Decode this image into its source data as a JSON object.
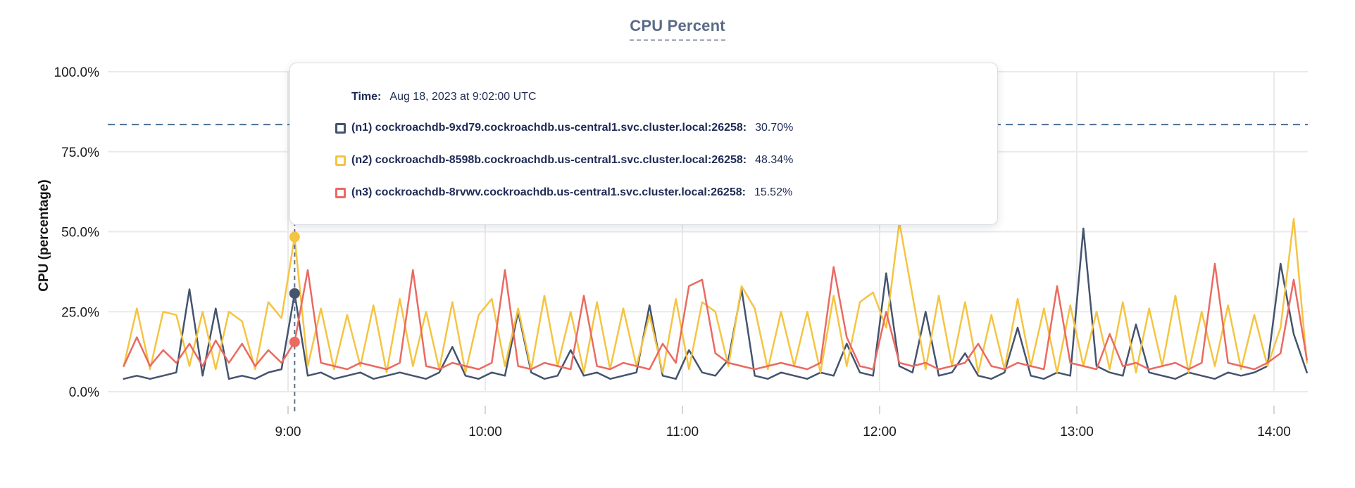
{
  "title": "CPU Percent",
  "y_axis": {
    "title": "CPU (percentage)",
    "tick_labels": [
      "0.0%",
      "25.0%",
      "50.0%",
      "75.0%",
      "100.0%"
    ]
  },
  "x_axis": {
    "tick_labels": [
      "9:00",
      "10:00",
      "11:00",
      "12:00",
      "13:00",
      "14:00"
    ]
  },
  "tooltip": {
    "time_label": "Time:",
    "time_value": "Aug 18, 2023 at 9:02:00 UTC",
    "series": [
      {
        "label": "(n1) cockroachdb-9xd79.cockroachdb.us-central1.svc.cluster.local:26258:",
        "value": "30.70%"
      },
      {
        "label": "(n2) cockroachdb-8598b.cockroachdb.us-central1.svc.cluster.local:26258:",
        "value": "48.34%"
      },
      {
        "label": "(n3) cockroachdb-8rvwv.cockroachdb.us-central1.svc.cluster.local:26258:",
        "value": "15.52%"
      }
    ]
  },
  "chart_data": {
    "type": "line",
    "title": "CPU Percent",
    "ylabel": "CPU (percentage)",
    "ylim": [
      0,
      100
    ],
    "y_ticks_percent": [
      0,
      25,
      50,
      75,
      100
    ],
    "grid": true,
    "threshold_dashed_line_percent": 83.5,
    "hover_marker": {
      "time": "9:02",
      "values_percent": {
        "n1": 30.7,
        "n2": 48.34,
        "n3": 15.52
      }
    },
    "x_hour_ticks": [
      "9:00",
      "10:00",
      "11:00",
      "12:00",
      "13:00",
      "14:00"
    ],
    "x_times": [
      "8:10",
      "8:14",
      "8:18",
      "8:22",
      "8:26",
      "8:30",
      "8:34",
      "8:38",
      "8:42",
      "8:46",
      "8:50",
      "8:54",
      "8:58",
      "9:02",
      "9:06",
      "9:10",
      "9:14",
      "9:18",
      "9:22",
      "9:26",
      "9:30",
      "9:34",
      "9:38",
      "9:42",
      "9:46",
      "9:50",
      "9:54",
      "9:58",
      "10:02",
      "10:06",
      "10:10",
      "10:14",
      "10:18",
      "10:22",
      "10:26",
      "10:30",
      "10:34",
      "10:38",
      "10:42",
      "10:46",
      "10:50",
      "10:54",
      "10:58",
      "11:02",
      "11:06",
      "11:10",
      "11:14",
      "11:18",
      "11:22",
      "11:26",
      "11:30",
      "11:34",
      "11:38",
      "11:42",
      "11:46",
      "11:50",
      "11:54",
      "11:58",
      "12:02",
      "12:06",
      "12:10",
      "12:14",
      "12:18",
      "12:22",
      "12:26",
      "12:30",
      "12:34",
      "12:38",
      "12:42",
      "12:46",
      "12:50",
      "12:54",
      "12:58",
      "13:02",
      "13:06",
      "13:10",
      "13:14",
      "13:18",
      "13:22",
      "13:26",
      "13:30",
      "13:34",
      "13:38",
      "13:42",
      "13:46",
      "13:50",
      "13:54",
      "13:58",
      "14:02",
      "14:06",
      "14:10"
    ],
    "series": [
      {
        "name": "n1",
        "host": "cockroachdb-9xd79.cockroachdb.us-central1.svc.cluster.local:26258",
        "color": "#44536e",
        "values": [
          4,
          5,
          4,
          5,
          6,
          32,
          5,
          26,
          4,
          5,
          4,
          6,
          7,
          30.7,
          5,
          6,
          4,
          5,
          6,
          4,
          5,
          6,
          5,
          4,
          6,
          14,
          5,
          4,
          6,
          5,
          25,
          6,
          4,
          5,
          13,
          5,
          6,
          4,
          5,
          6,
          27,
          5,
          4,
          13,
          6,
          5,
          10,
          32,
          5,
          4,
          6,
          5,
          4,
          6,
          5,
          15,
          6,
          5,
          37,
          8,
          6,
          25,
          5,
          6,
          12,
          5,
          4,
          6,
          20,
          5,
          4,
          6,
          5,
          51,
          8,
          6,
          5,
          21,
          6,
          5,
          4,
          6,
          5,
          4,
          6,
          5,
          6,
          8,
          40,
          18,
          6
        ]
      },
      {
        "name": "n2",
        "host": "cockroachdb-8598b.cockroachdb.us-central1.svc.cluster.local:26258",
        "color": "#f5c442",
        "values": [
          8,
          26,
          7,
          25,
          24,
          8,
          25,
          7,
          25,
          22,
          7,
          28,
          23,
          48.34,
          8,
          26,
          7,
          24,
          8,
          27,
          6,
          29,
          8,
          25,
          7,
          28,
          6,
          24,
          29,
          8,
          26,
          7,
          30,
          8,
          25,
          6,
          28,
          7,
          26,
          8,
          24,
          6,
          29,
          7,
          28,
          25,
          8,
          33,
          26,
          7,
          25,
          8,
          25,
          6,
          30,
          8,
          28,
          31,
          20,
          53,
          30,
          7,
          30,
          8,
          28,
          6,
          24,
          7,
          29,
          8,
          26,
          6,
          27,
          8,
          25,
          7,
          28,
          6,
          26,
          8,
          30,
          6,
          25,
          8,
          27,
          7,
          24,
          8,
          20,
          54,
          9
        ]
      },
      {
        "name": "n3",
        "host": "cockroachdb-8rvwv.cockroachdb.us-central1.svc.cluster.local:26258",
        "color": "#ea6a62",
        "values": [
          8,
          17,
          8,
          13,
          9,
          15,
          8,
          16,
          9,
          15,
          8,
          13,
          9,
          15.52,
          38,
          9,
          8,
          7,
          9,
          8,
          7,
          9,
          38,
          8,
          7,
          9,
          8,
          7,
          9,
          38,
          8,
          7,
          9,
          8,
          7,
          30,
          8,
          7,
          9,
          8,
          7,
          15,
          9,
          33,
          35,
          12,
          9,
          8,
          7,
          8,
          9,
          8,
          7,
          9,
          39,
          17,
          8,
          7,
          25,
          9,
          8,
          9,
          7,
          8,
          9,
          15,
          8,
          7,
          9,
          8,
          7,
          33,
          9,
          8,
          7,
          18,
          8,
          9,
          7,
          8,
          9,
          7,
          9,
          40,
          9,
          8,
          7,
          9,
          12,
          35,
          10
        ]
      }
    ],
    "colors": {
      "n1": "#44536e",
      "n2": "#f5c442",
      "n3": "#ea6a62",
      "grid": "#eaeaea",
      "threshold": "#4b6e93",
      "hover_line": "#5c7089",
      "title_text": "#5b6b87",
      "tooltip_text": "#1e2b55"
    }
  }
}
